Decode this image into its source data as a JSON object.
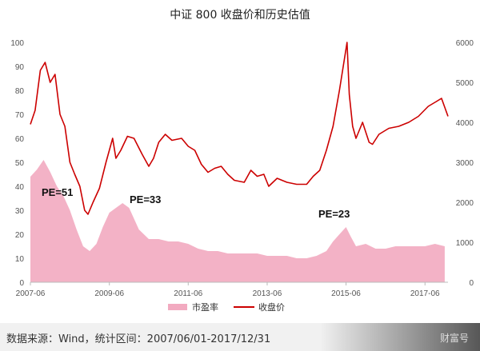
{
  "chart_data": {
    "type": "line",
    "title": "中证 800 收盘价和历史估值",
    "x_tick_labels": [
      "2007-06",
      "2009-06",
      "2011-06",
      "2013-06",
      "2015-06",
      "2017-06"
    ],
    "x_range": [
      "2007-06-01",
      "2017-12-31"
    ],
    "y_left": {
      "min": 0,
      "max": 100,
      "ticks": [
        0,
        10,
        20,
        30,
        40,
        50,
        60,
        70,
        80,
        90,
        100
      ]
    },
    "y_right": {
      "min": 0,
      "max": 6000,
      "ticks": [
        0,
        1000,
        2000,
        3000,
        4000,
        5000,
        6000
      ]
    },
    "legend_position": "bottom",
    "grid": false,
    "series": [
      {
        "name": "市盈率",
        "kind": "area",
        "axis": "left",
        "color": "#f2aac0",
        "x": [
          "2007-06-01",
          "2007-08-01",
          "2007-10-01",
          "2007-12-01",
          "2008-02-01",
          "2008-04-01",
          "2008-06-01",
          "2008-08-01",
          "2008-10-01",
          "2008-12-01",
          "2009-02-01",
          "2009-04-01",
          "2009-06-01",
          "2009-08-01",
          "2009-10-01",
          "2009-12-01",
          "2010-03-01",
          "2010-06-01",
          "2010-09-01",
          "2010-12-01",
          "2011-03-01",
          "2011-06-01",
          "2011-09-01",
          "2011-12-01",
          "2012-03-01",
          "2012-06-01",
          "2012-09-01",
          "2012-12-01",
          "2013-03-01",
          "2013-06-01",
          "2013-09-01",
          "2013-12-01",
          "2014-03-01",
          "2014-06-01",
          "2014-09-01",
          "2014-12-01",
          "2015-02-01",
          "2015-04-01",
          "2015-06-01",
          "2015-07-15",
          "2015-09-01",
          "2015-12-01",
          "2016-03-01",
          "2016-06-01",
          "2016-09-01",
          "2016-12-01",
          "2017-03-01",
          "2017-06-01",
          "2017-09-01",
          "2017-12-01"
        ],
        "values": [
          44,
          47,
          51,
          46,
          40,
          36,
          30,
          22,
          15,
          13,
          16,
          23,
          29,
          31,
          33,
          31,
          22,
          18,
          18,
          17,
          17,
          16,
          14,
          13,
          13,
          12,
          12,
          12,
          12,
          11,
          11,
          11,
          10,
          10,
          11,
          13,
          17,
          20,
          23,
          19,
          15,
          16,
          14,
          14,
          15,
          15,
          15,
          15,
          16,
          15
        ]
      },
      {
        "name": "收盘价",
        "kind": "line",
        "axis": "right",
        "color": "#cc0000",
        "x": [
          "2007-06-01",
          "2007-07-15",
          "2007-09-01",
          "2007-10-15",
          "2007-12-01",
          "2008-01-15",
          "2008-03-01",
          "2008-04-15",
          "2008-06-01",
          "2008-07-15",
          "2008-09-01",
          "2008-10-15",
          "2008-11-15",
          "2009-01-01",
          "2009-03-01",
          "2009-05-01",
          "2009-07-01",
          "2009-08-01",
          "2009-09-15",
          "2009-11-15",
          "2010-01-15",
          "2010-04-01",
          "2010-06-01",
          "2010-07-15",
          "2010-09-01",
          "2010-11-01",
          "2011-01-01",
          "2011-04-01",
          "2011-06-01",
          "2011-08-01",
          "2011-10-01",
          "2011-12-01",
          "2012-02-01",
          "2012-04-01",
          "2012-06-01",
          "2012-08-01",
          "2012-11-01",
          "2013-01-01",
          "2013-03-01",
          "2013-05-01",
          "2013-06-15",
          "2013-09-01",
          "2013-12-01",
          "2014-03-01",
          "2014-06-01",
          "2014-08-01",
          "2014-10-01",
          "2014-12-01",
          "2015-02-01",
          "2015-04-01",
          "2015-06-10",
          "2015-07-01",
          "2015-08-01",
          "2015-09-01",
          "2015-11-01",
          "2016-01-01",
          "2016-02-01",
          "2016-04-01",
          "2016-07-01",
          "2016-10-01",
          "2017-01-01",
          "2017-04-01",
          "2017-07-01",
          "2017-09-01",
          "2017-11-01",
          "2017-12-31"
        ],
        "values": [
          3950,
          4300,
          5300,
          5500,
          5000,
          5200,
          4200,
          3900,
          3000,
          2700,
          2400,
          1800,
          1700,
          2000,
          2350,
          3000,
          3600,
          3100,
          3300,
          3650,
          3600,
          3200,
          2900,
          3100,
          3500,
          3700,
          3550,
          3600,
          3400,
          3300,
          2950,
          2750,
          2850,
          2900,
          2700,
          2550,
          2500,
          2800,
          2650,
          2700,
          2400,
          2600,
          2500,
          2450,
          2450,
          2650,
          2800,
          3300,
          3900,
          4800,
          6000,
          4700,
          3900,
          3600,
          4000,
          3500,
          3450,
          3700,
          3850,
          3900,
          4000,
          4150,
          4400,
          4500,
          4600,
          4150
        ]
      }
    ],
    "annotations": [
      "PE=51",
      "PE=33",
      "PE=23"
    ]
  },
  "footer": {
    "source": "数据来源：Wind，统计区间：2007/06/01-2017/12/31",
    "watermark": "财富号"
  }
}
